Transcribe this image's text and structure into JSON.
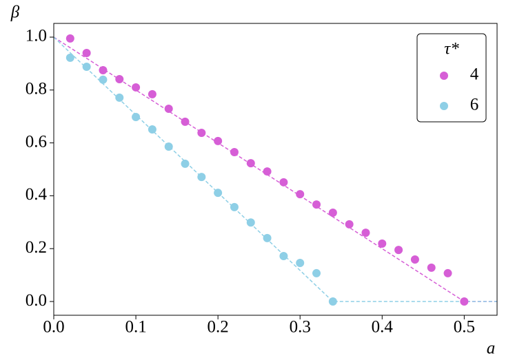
{
  "chart_data": {
    "type": "scatter",
    "xlabel": "a",
    "ylabel": "β",
    "xlim": [
      0,
      0.54
    ],
    "ylim": [
      -0.052,
      1.052
    ],
    "xticks": [
      {
        "value": 0,
        "label": "0.0"
      },
      0.1,
      0.2,
      0.3,
      0.4,
      0.5
    ],
    "yticks": [
      {
        "value": 0,
        "label": "0.0"
      },
      0.2,
      0.4,
      0.6,
      0.8,
      {
        "value": 1,
        "label": "1.0"
      }
    ],
    "legend_title": "τ*",
    "legend": "upper right",
    "grid": false,
    "series": [
      {
        "name": "4",
        "color": "#d65ed6",
        "x": [
          0.02,
          0.04,
          0.06,
          0.08,
          0.1,
          0.12,
          0.14,
          0.16,
          0.18,
          0.2,
          0.22,
          0.24,
          0.26,
          0.28,
          0.3,
          0.32,
          0.34,
          0.36,
          0.38,
          0.4,
          0.42,
          0.44,
          0.46,
          0.48,
          0.5
        ],
        "values": [
          0.995,
          0.94,
          0.875,
          0.841,
          0.81,
          0.784,
          0.729,
          0.68,
          0.638,
          0.607,
          0.565,
          0.523,
          0.492,
          0.451,
          0.406,
          0.367,
          0.336,
          0.292,
          0.26,
          0.219,
          0.195,
          0.159,
          0.128,
          0.107,
          0
        ]
      },
      {
        "name": "6",
        "color": "#8ecfe6",
        "x": [
          0.02,
          0.04,
          0.06,
          0.08,
          0.1,
          0.12,
          0.14,
          0.16,
          0.18,
          0.2,
          0.22,
          0.24,
          0.26,
          0.28,
          0.3,
          0.32,
          0.34
        ],
        "values": [
          0.922,
          0.888,
          0.839,
          0.771,
          0.698,
          0.651,
          0.586,
          0.521,
          0.471,
          0.411,
          0.357,
          0.299,
          0.24,
          0.172,
          0.146,
          0.107,
          0
        ]
      }
    ],
    "lines": [
      {
        "color": "#d65ed6",
        "x": [
          0,
          0.5,
          0.54
        ],
        "values": [
          1,
          0,
          0
        ]
      },
      {
        "color": "#8ecfe6",
        "x": [
          0,
          0.34,
          0.54
        ],
        "values": [
          1,
          0,
          0
        ]
      }
    ]
  }
}
